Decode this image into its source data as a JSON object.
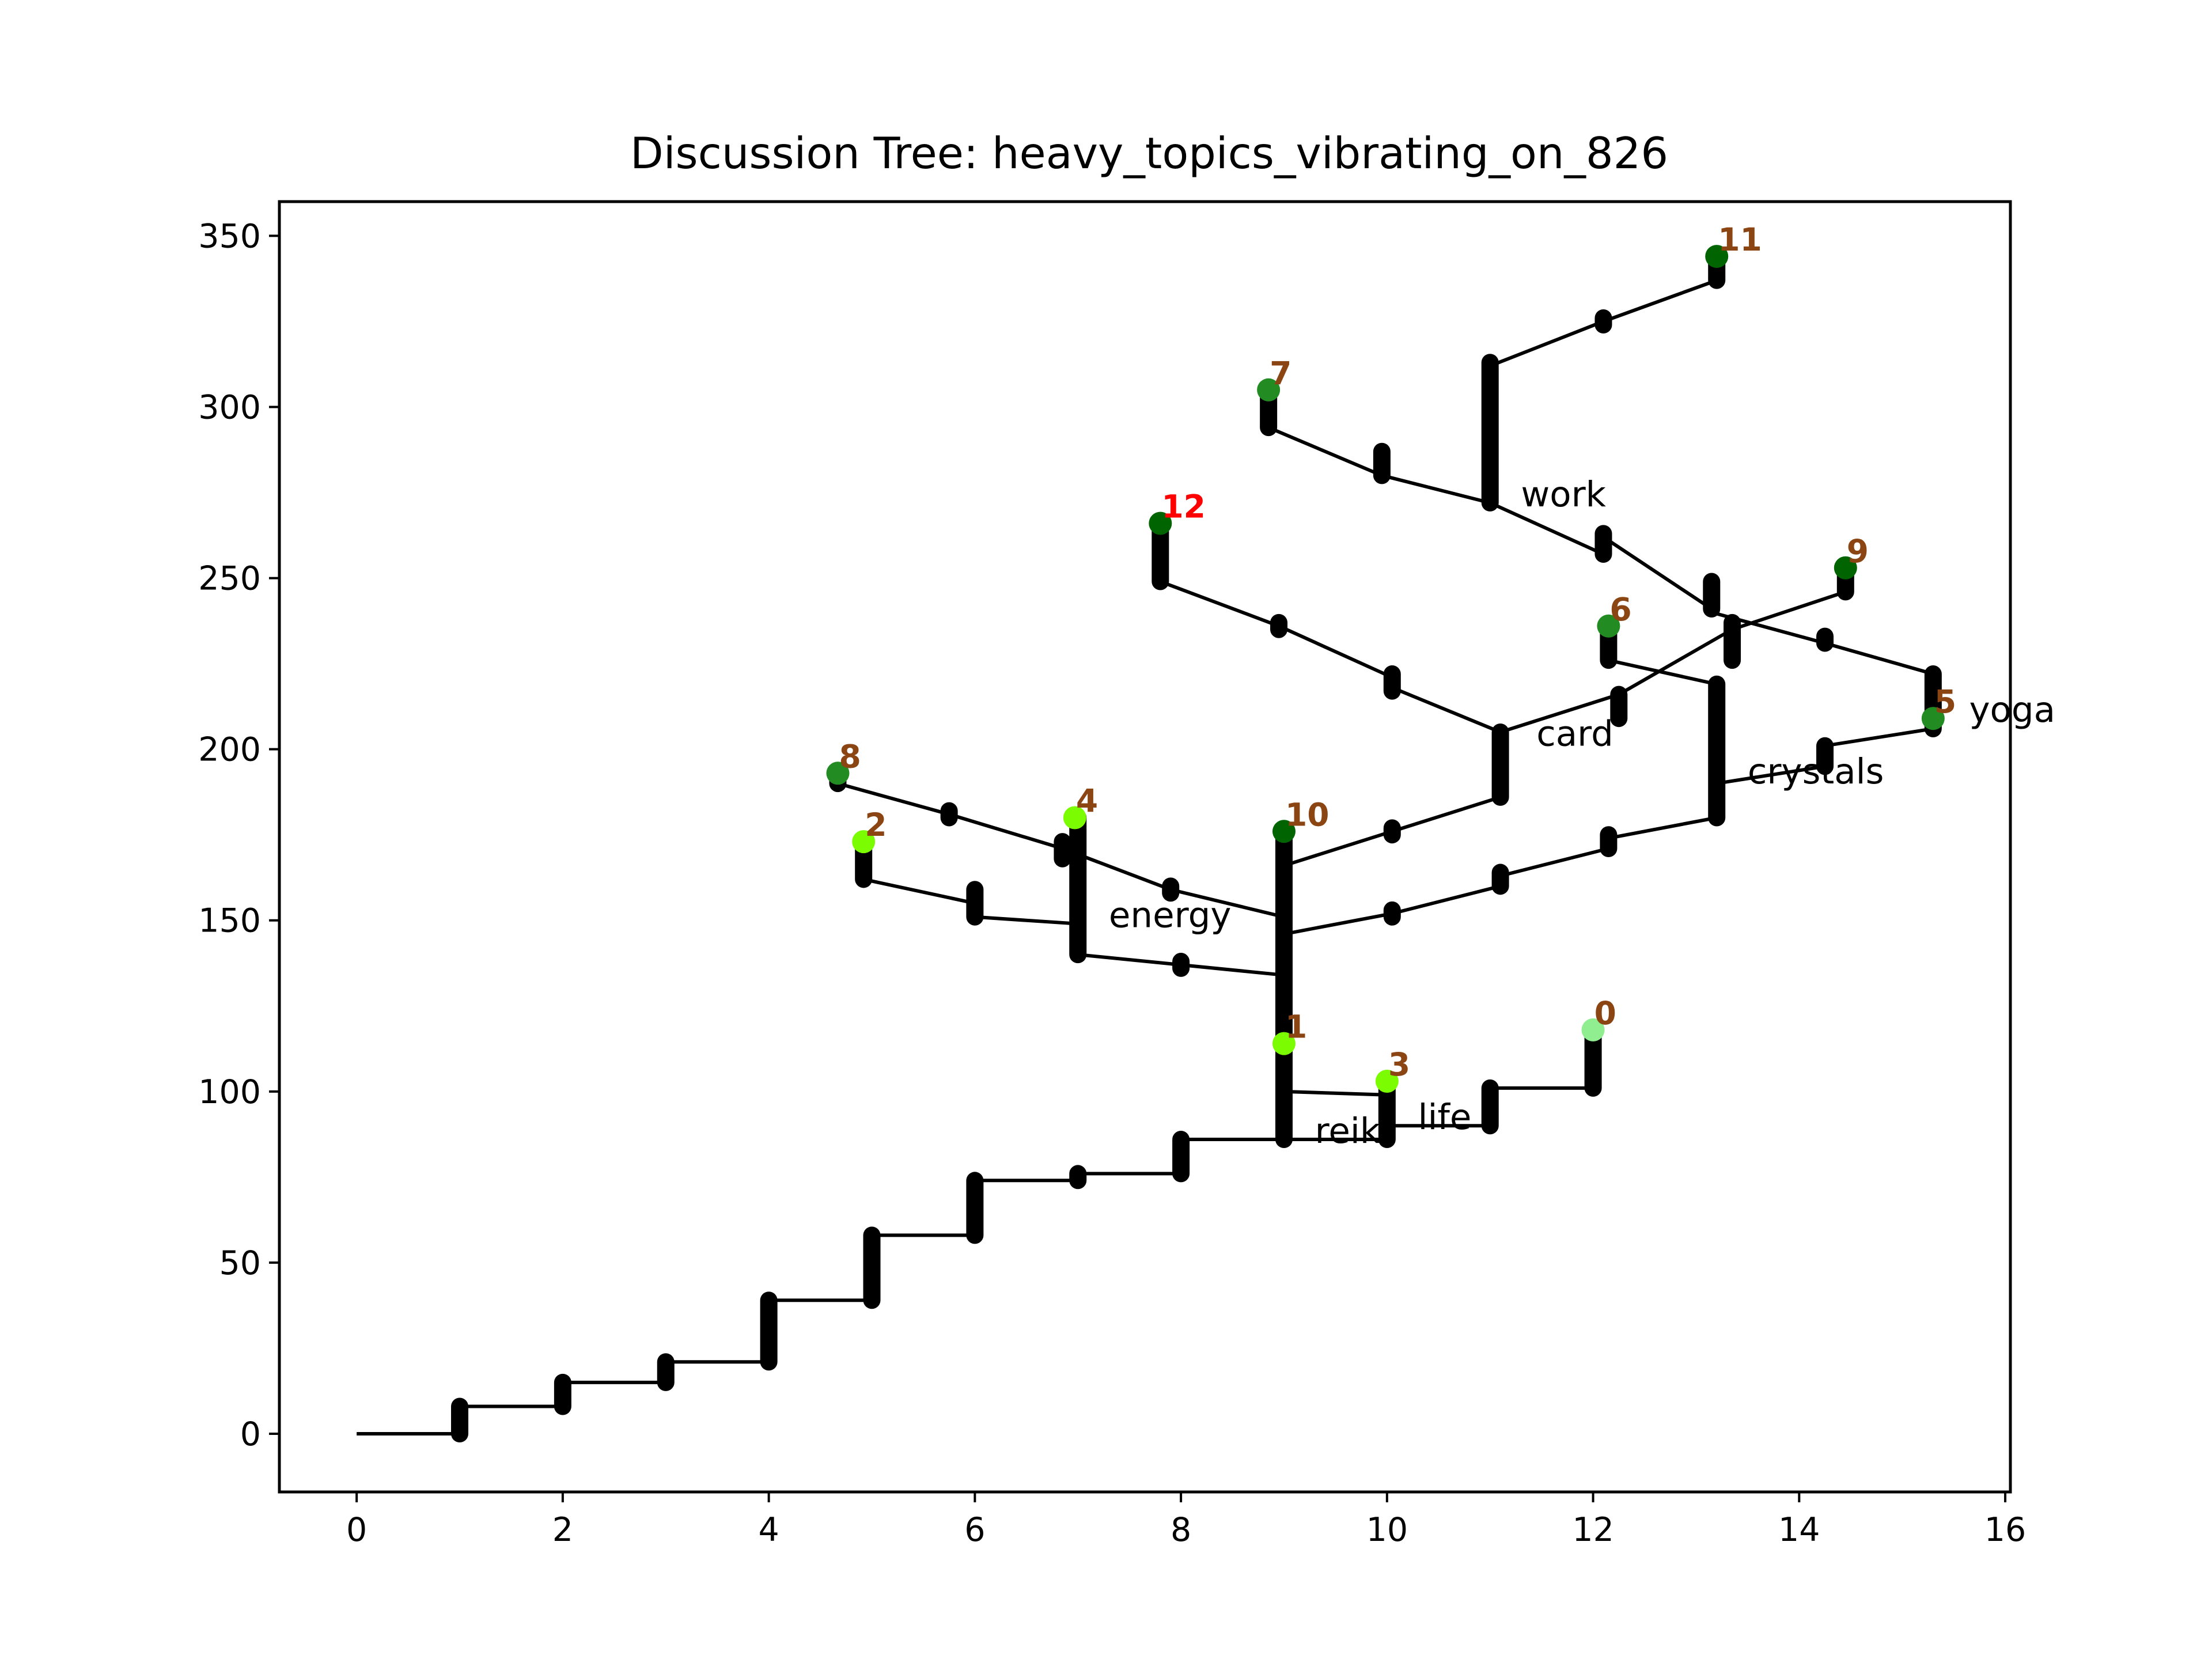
{
  "chart_data": {
    "type": "scatter",
    "title": "Discussion Tree: heavy_topics_vibrating_on_826",
    "xlabel": "",
    "ylabel": "",
    "xlim": [
      -0.75,
      16.05
    ],
    "ylim": [
      -17,
      360
    ],
    "xticks": [
      0,
      2,
      4,
      6,
      8,
      10,
      12,
      14,
      16
    ],
    "yticks": [
      0,
      50,
      100,
      150,
      200,
      250,
      300,
      350
    ],
    "grid": false,
    "edge_color": "#000000",
    "edges": [
      [
        [
          0,
          0
        ],
        [
          1,
          0
        ]
      ],
      [
        [
          1,
          8
        ],
        [
          2,
          8
        ]
      ],
      [
        [
          2,
          15
        ],
        [
          3,
          15
        ]
      ],
      [
        [
          3,
          21
        ],
        [
          4,
          21
        ]
      ],
      [
        [
          4,
          39
        ],
        [
          5,
          39
        ]
      ],
      [
        [
          5,
          58
        ],
        [
          6,
          58
        ]
      ],
      [
        [
          6,
          74
        ],
        [
          7,
          74
        ]
      ],
      [
        [
          7,
          76
        ],
        [
          8,
          76
        ]
      ],
      [
        [
          8,
          86
        ],
        [
          9,
          86
        ]
      ],
      [
        [
          9,
          86
        ],
        [
          10,
          86
        ]
      ],
      [
        [
          10,
          90
        ],
        [
          11,
          90
        ]
      ],
      [
        [
          11,
          101
        ],
        [
          12,
          101
        ]
      ],
      [
        [
          9,
          100
        ],
        [
          10,
          99
        ]
      ],
      [
        [
          9,
          134
        ],
        [
          8,
          137
        ]
      ],
      [
        [
          8,
          137
        ],
        [
          7,
          140
        ]
      ],
      [
        [
          7,
          149
        ],
        [
          6,
          151
        ]
      ],
      [
        [
          6,
          155
        ],
        [
          4.92,
          162
        ]
      ],
      [
        [
          9,
          151
        ],
        [
          7.9,
          159
        ]
      ],
      [
        [
          7.9,
          159
        ],
        [
          6.85,
          171
        ]
      ],
      [
        [
          6.85,
          171
        ],
        [
          5.75,
          181
        ]
      ],
      [
        [
          5.75,
          181
        ],
        [
          4.67,
          190
        ]
      ],
      [
        [
          9,
          166
        ],
        [
          10.05,
          176
        ]
      ],
      [
        [
          10.05,
          176
        ],
        [
          11.1,
          186
        ]
      ],
      [
        [
          11.1,
          205
        ],
        [
          12.25,
          216
        ]
      ],
      [
        [
          12.25,
          216
        ],
        [
          13.35,
          235
        ]
      ],
      [
        [
          13.35,
          235
        ],
        [
          14.45,
          246
        ]
      ],
      [
        [
          9,
          146
        ],
        [
          10.05,
          152
        ]
      ],
      [
        [
          10.05,
          152
        ],
        [
          11.1,
          160
        ]
      ],
      [
        [
          11.1,
          163
        ],
        [
          12.15,
          171
        ]
      ],
      [
        [
          12.15,
          174
        ],
        [
          13.2,
          180
        ]
      ],
      [
        [
          13.2,
          190
        ],
        [
          14.25,
          195
        ]
      ],
      [
        [
          14.25,
          201
        ],
        [
          15.3,
          206
        ]
      ],
      [
        [
          13.2,
          219
        ],
        [
          12.15,
          226
        ]
      ],
      [
        [
          11.1,
          205
        ],
        [
          10.05,
          218
        ]
      ],
      [
        [
          10.05,
          221
        ],
        [
          8.95,
          236
        ]
      ],
      [
        [
          8.95,
          236
        ],
        [
          7.8,
          249
        ]
      ],
      [
        [
          11,
          272
        ],
        [
          12.1,
          257
        ]
      ],
      [
        [
          12.1,
          262
        ],
        [
          13.15,
          241
        ]
      ],
      [
        [
          13.15,
          240
        ],
        [
          14.25,
          231
        ]
      ],
      [
        [
          14.25,
          231
        ],
        [
          15.3,
          222
        ]
      ],
      [
        [
          11,
          272
        ],
        [
          9.95,
          280
        ]
      ],
      [
        [
          9.95,
          280
        ],
        [
          8.85,
          294
        ]
      ],
      [
        [
          11,
          312
        ],
        [
          12.1,
          325
        ]
      ],
      [
        [
          12.1,
          325
        ],
        [
          13.2,
          337
        ]
      ]
    ],
    "bars": [
      [
        1,
        0,
        8
      ],
      [
        2,
        8,
        15
      ],
      [
        3,
        15,
        21
      ],
      [
        4,
        21,
        39
      ],
      [
        5,
        39,
        58
      ],
      [
        6,
        58,
        74
      ],
      [
        7,
        74,
        76
      ],
      [
        8,
        76,
        86
      ],
      [
        9,
        86,
        114
      ],
      [
        10,
        86,
        103
      ],
      [
        11,
        90,
        101
      ],
      [
        12,
        101,
        118
      ],
      [
        9,
        114,
        176
      ],
      [
        8,
        136,
        138
      ],
      [
        7,
        140,
        180
      ],
      [
        6,
        151,
        159
      ],
      [
        4.92,
        162,
        173
      ],
      [
        7.9,
        158,
        160
      ],
      [
        6.85,
        168,
        173
      ],
      [
        5.75,
        180,
        182
      ],
      [
        4.67,
        190,
        193
      ],
      [
        10.05,
        151,
        153
      ],
      [
        11.1,
        160,
        164
      ],
      [
        12.15,
        171,
        175
      ],
      [
        13.2,
        180,
        219
      ],
      [
        14.25,
        195,
        201
      ],
      [
        15.3,
        206,
        222
      ],
      [
        12.15,
        226,
        236
      ],
      [
        10.05,
        175,
        177
      ],
      [
        11.1,
        186,
        205
      ],
      [
        12.25,
        209,
        216
      ],
      [
        13.35,
        226,
        237
      ],
      [
        14.45,
        246,
        253
      ],
      [
        10.05,
        217,
        222
      ],
      [
        8.95,
        235,
        237
      ],
      [
        7.8,
        249,
        266
      ],
      [
        11,
        272,
        313
      ],
      [
        12.1,
        257,
        263
      ],
      [
        13.15,
        241,
        249
      ],
      [
        14.25,
        231,
        233
      ],
      [
        9.95,
        280,
        287
      ],
      [
        8.85,
        294,
        305
      ],
      [
        12.1,
        324,
        326
      ],
      [
        13.2,
        337,
        344
      ]
    ],
    "nodes": [
      {
        "label": "0",
        "x": 12,
        "y": 118,
        "color": "#90ee90",
        "label_color": "#8b4513"
      },
      {
        "label": "1",
        "x": 9,
        "y": 114,
        "color": "#7cfc00",
        "label_color": "#8b4513"
      },
      {
        "label": "2",
        "x": 4.92,
        "y": 173,
        "color": "#7cfc00",
        "label_color": "#8b4513"
      },
      {
        "label": "3",
        "x": 10,
        "y": 103,
        "color": "#7cfc00",
        "label_color": "#8b4513"
      },
      {
        "label": "4",
        "x": 6.97,
        "y": 180,
        "color": "#7cfc00",
        "label_color": "#8b4513"
      },
      {
        "label": "5",
        "x": 15.3,
        "y": 209,
        "color": "#228b22",
        "label_color": "#8b4513"
      },
      {
        "label": "6",
        "x": 12.15,
        "y": 236,
        "color": "#228b22",
        "label_color": "#8b4513"
      },
      {
        "label": "7",
        "x": 8.85,
        "y": 305,
        "color": "#228b22",
        "label_color": "#8b4513"
      },
      {
        "label": "8",
        "x": 4.67,
        "y": 193,
        "color": "#228b22",
        "label_color": "#8b4513"
      },
      {
        "label": "9",
        "x": 14.45,
        "y": 253,
        "color": "#006400",
        "label_color": "#8b4513"
      },
      {
        "label": "10",
        "x": 9,
        "y": 176,
        "color": "#006400",
        "label_color": "#8b4513"
      },
      {
        "label": "11",
        "x": 13.2,
        "y": 344,
        "color": "#006400",
        "label_color": "#8b4513"
      },
      {
        "label": "12",
        "x": 7.8,
        "y": 266,
        "color": "#006400",
        "label_color": "#ff0000"
      }
    ],
    "topic_labels": [
      {
        "text": "work",
        "x": 11.3,
        "y": 271
      },
      {
        "text": "yoga",
        "x": 15.65,
        "y": 208
      },
      {
        "text": "card",
        "x": 11.45,
        "y": 201
      },
      {
        "text": "crystals",
        "x": 13.5,
        "y": 190
      },
      {
        "text": "energy",
        "x": 7.3,
        "y": 148
      },
      {
        "text": "reiki",
        "x": 9.3,
        "y": 85
      },
      {
        "text": "life",
        "x": 10.3,
        "y": 89
      }
    ]
  }
}
